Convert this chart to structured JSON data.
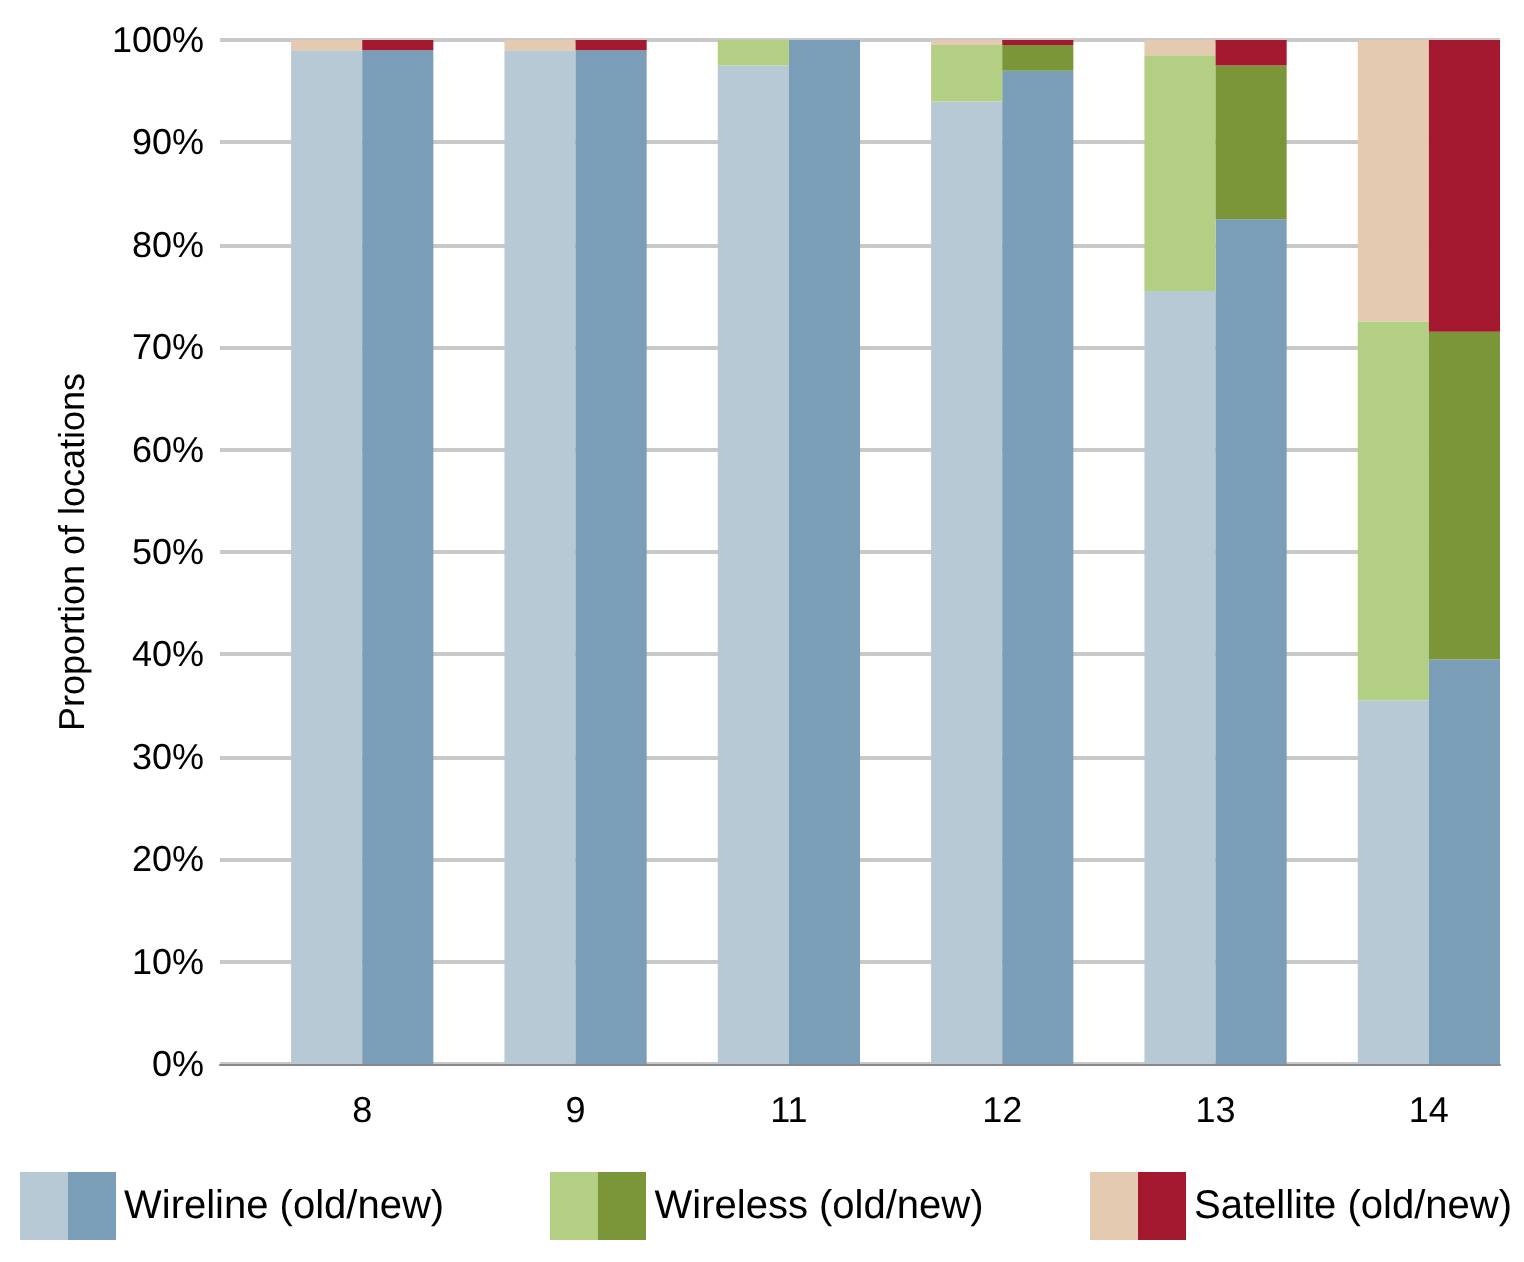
{
  "chart_data": {
    "type": "bar",
    "stacked": true,
    "ylabel": "Proportion of locations",
    "categories": [
      null,
      "8",
      null,
      null,
      "9",
      null,
      null,
      "11",
      null,
      null,
      "12",
      null,
      null,
      "13",
      null,
      null,
      "14",
      null
    ],
    "series": [
      {
        "name": "Wireline (old/new)",
        "colors": [
          null,
          "#b8c9d6",
          "#7a9eb7",
          null,
          "#b8c9d6",
          "#7a9eb7",
          null,
          "#b8c9d6",
          "#7a9eb7",
          null,
          "#b8c9d6",
          "#7a9eb7",
          null,
          "#b8c9d6",
          "#7a9eb7",
          null,
          "#b8c9d6",
          "#7a9eb7"
        ],
        "values": [
          null,
          99,
          99,
          null,
          99,
          99,
          null,
          97.5,
          100,
          null,
          94,
          97,
          null,
          75.5,
          82.5,
          null,
          35.5,
          39.5
        ]
      },
      {
        "name": "Wireless (old/new)",
        "colors": [
          null,
          "#b3cf84",
          "#7a9638",
          null,
          "#b3cf84",
          "#7a9638",
          null,
          "#b3cf84",
          "#7a9638",
          null,
          "#b3cf84",
          "#7a9638",
          null,
          "#b3cf84",
          "#7a9638",
          null,
          "#b3cf84",
          "#7a9638"
        ],
        "values": [
          null,
          0,
          0,
          null,
          0,
          0,
          null,
          2.5,
          0,
          null,
          5.5,
          2.5,
          null,
          23,
          15,
          null,
          37,
          32
        ]
      },
      {
        "name": "Satellite (old/new)",
        "colors": [
          null,
          "#e3cab0",
          "#a51930",
          null,
          "#e3cab0",
          "#a51930",
          null,
          "#e3cab0",
          "#a51930",
          null,
          "#e3cab0",
          "#a51930",
          null,
          "#e3cab0",
          "#a51930",
          null,
          "#e3cab0",
          "#a51930"
        ],
        "values": [
          null,
          1,
          1,
          null,
          1,
          1,
          null,
          0,
          0,
          null,
          0.5,
          0.5,
          null,
          1.5,
          2.5,
          null,
          27.5,
          28.5
        ]
      }
    ],
    "ylim": [
      0,
      100
    ],
    "yticks": [
      {
        "value": 0,
        "label": "0%"
      },
      {
        "value": 10,
        "label": "10%"
      },
      {
        "value": 20,
        "label": "20%"
      },
      {
        "value": 30,
        "label": "30%"
      },
      {
        "value": 40,
        "label": "40%"
      },
      {
        "value": 50,
        "label": "50%"
      },
      {
        "value": 60,
        "label": "60%"
      },
      {
        "value": 70,
        "label": "70%"
      },
      {
        "value": 80,
        "label": "80%"
      },
      {
        "value": 90,
        "label": "90%"
      },
      {
        "value": 100,
        "label": "100%"
      }
    ],
    "grid": "y",
    "legend": "bottom"
  }
}
